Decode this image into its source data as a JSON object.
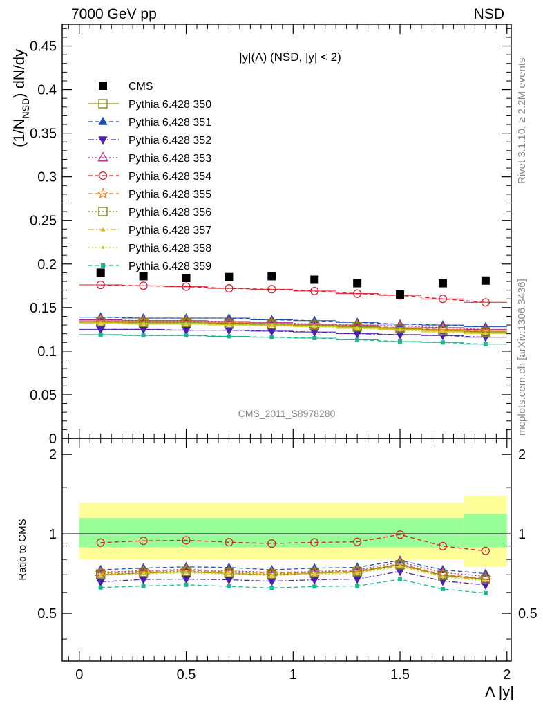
{
  "header": {
    "left": "7000 GeV pp",
    "right": "NSD"
  },
  "side_labels": {
    "rivet": "Rivet 3.1.10, ≥ 2.2M events",
    "mcplots": "mcplots.cern.ch [arXiv:1306.3436]"
  },
  "chart_data": {
    "type": "scatter",
    "title": "|y|(Λ) (NSD, |y| < 2)",
    "watermark": "CMS_2011_S8978280",
    "xlabel": "Λ |y|",
    "ylabel": "(1/N_NSD) dN/dy",
    "ylabel_parts": {
      "main": "(1/N",
      "sub": "NSD",
      "tail": ") dN/dy"
    },
    "ratio_ylabel": "Ratio to CMS",
    "xlim": [
      -0.08,
      2.02
    ],
    "ylim": [
      0,
      0.475
    ],
    "ratio_ylim": [
      0.33,
      2.3
    ],
    "x_ticks": [
      "0",
      "0.5",
      "1",
      "1.5",
      "2"
    ],
    "y_ticks": [
      "0",
      "0.05",
      "0.1",
      "0.15",
      "0.2",
      "0.25",
      "0.3",
      "0.35",
      "0.4",
      "0.45"
    ],
    "ratio_ticks": [
      "0.5",
      "1",
      "2"
    ],
    "x": [
      0.1,
      0.3,
      0.5,
      0.7,
      0.9,
      1.1,
      1.3,
      1.5,
      1.7,
      1.9
    ],
    "data": {
      "name": "CMS",
      "values": [
        0.19,
        0.186,
        0.184,
        0.185,
        0.186,
        0.182,
        0.178,
        0.165,
        0.178,
        0.181
      ]
    },
    "bands": [
      {
        "x": [
          0.0,
          1.8
        ],
        "stat": [
          0.89,
          1.15
        ],
        "total": [
          0.8,
          1.31
        ]
      },
      {
        "x": [
          1.8,
          2.0
        ],
        "stat": [
          0.89,
          1.19
        ],
        "total": [
          0.75,
          1.39
        ]
      }
    ],
    "series": [
      {
        "name": "Pythia 6.428 350",
        "color": "#8c8c1a",
        "marker": "square-open",
        "dash": "solid",
        "values": [
          0.133,
          0.132,
          0.132,
          0.131,
          0.13,
          0.129,
          0.128,
          0.126,
          0.124,
          0.122
        ]
      },
      {
        "name": "Pythia 6.428 351",
        "color": "#1f4fb0",
        "marker": "triangle-up",
        "dash": "dashed",
        "values": [
          0.139,
          0.138,
          0.138,
          0.138,
          0.136,
          0.135,
          0.133,
          0.131,
          0.13,
          0.128
        ]
      },
      {
        "name": "Pythia 6.428 352",
        "color": "#4b22b0",
        "marker": "triangle-down",
        "dash": "dashdot",
        "values": [
          0.125,
          0.125,
          0.124,
          0.124,
          0.123,
          0.122,
          0.12,
          0.119,
          0.118,
          0.116
        ]
      },
      {
        "name": "Pythia 6.428 353",
        "color": "#b0208c",
        "marker": "triangle-up-open",
        "dash": "dotted",
        "values": [
          0.136,
          0.135,
          0.135,
          0.134,
          0.133,
          0.131,
          0.13,
          0.129,
          0.127,
          0.125
        ]
      },
      {
        "name": "Pythia 6.428 354",
        "color": "#e01a2a",
        "marker": "circle-open",
        "dash": "dashed",
        "values": [
          0.176,
          0.175,
          0.174,
          0.172,
          0.171,
          0.169,
          0.166,
          0.164,
          0.16,
          0.156
        ]
      },
      {
        "name": "Pythia 6.428 355",
        "color": "#f07818",
        "marker": "star-open",
        "dash": "dashed",
        "values": [
          0.135,
          0.134,
          0.134,
          0.133,
          0.132,
          0.13,
          0.129,
          0.127,
          0.125,
          0.123
        ]
      },
      {
        "name": "Pythia 6.428 356",
        "color": "#7a8c1a",
        "marker": "square-open",
        "dash": "dotted",
        "values": [
          0.134,
          0.133,
          0.133,
          0.132,
          0.131,
          0.13,
          0.128,
          0.126,
          0.124,
          0.122
        ]
      },
      {
        "name": "Pythia 6.428 357",
        "color": "#d8b418",
        "marker": "tri-small",
        "dash": "dashdot",
        "values": [
          0.133,
          0.132,
          0.132,
          0.131,
          0.13,
          0.129,
          0.127,
          0.125,
          0.123,
          0.121
        ]
      },
      {
        "name": "Pythia 6.428 358",
        "color": "#c8d830",
        "marker": "dot-small",
        "dash": "dotted",
        "values": [
          0.132,
          0.131,
          0.131,
          0.13,
          0.129,
          0.128,
          0.126,
          0.124,
          0.122,
          0.12
        ]
      },
      {
        "name": "Pythia 6.428 359",
        "color": "#18b890",
        "marker": "square-filled",
        "dash": "dashed",
        "values": [
          0.119,
          0.118,
          0.118,
          0.117,
          0.116,
          0.115,
          0.113,
          0.111,
          0.11,
          0.108
        ]
      }
    ]
  }
}
